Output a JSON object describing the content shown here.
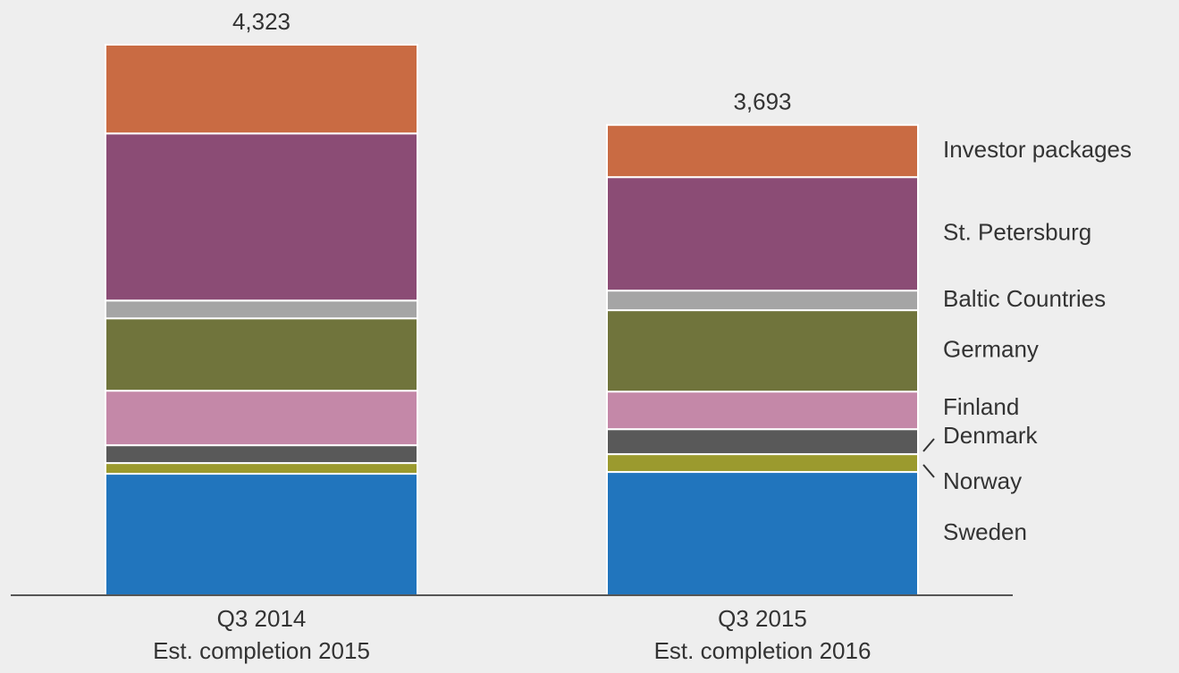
{
  "chart_data": {
    "type": "stacked-bar",
    "categories": [
      [
        "Q3 2014",
        "Est. completion 2015"
      ],
      [
        "Q3 2015",
        "Est. completion 2016"
      ]
    ],
    "series": [
      {
        "name": "Sweden",
        "color": "#2175bd",
        "values": [
          954,
          968
        ]
      },
      {
        "name": "Norway",
        "color": "#9b9a2e",
        "values": [
          84,
          140
        ]
      },
      {
        "name": "Denmark",
        "color": "#595959",
        "values": [
          140,
          196
        ]
      },
      {
        "name": "Finland",
        "color": "#c488a8",
        "values": [
          428,
          295
        ]
      },
      {
        "name": "Germany",
        "color": "#70743c",
        "values": [
          568,
          639
        ]
      },
      {
        "name": "Baltic Countries",
        "color": "#a5a5a5",
        "values": [
          140,
          154
        ]
      },
      {
        "name": "St. Petersburg",
        "color": "#8b4c75",
        "values": [
          1312,
          891
        ]
      },
      {
        "name": "Investor packages",
        "color": "#c96b43",
        "values": [
          697,
          410
        ]
      }
    ],
    "totals": [
      4323,
      3693
    ],
    "total_labels": [
      "4,323",
      "3,693"
    ]
  }
}
